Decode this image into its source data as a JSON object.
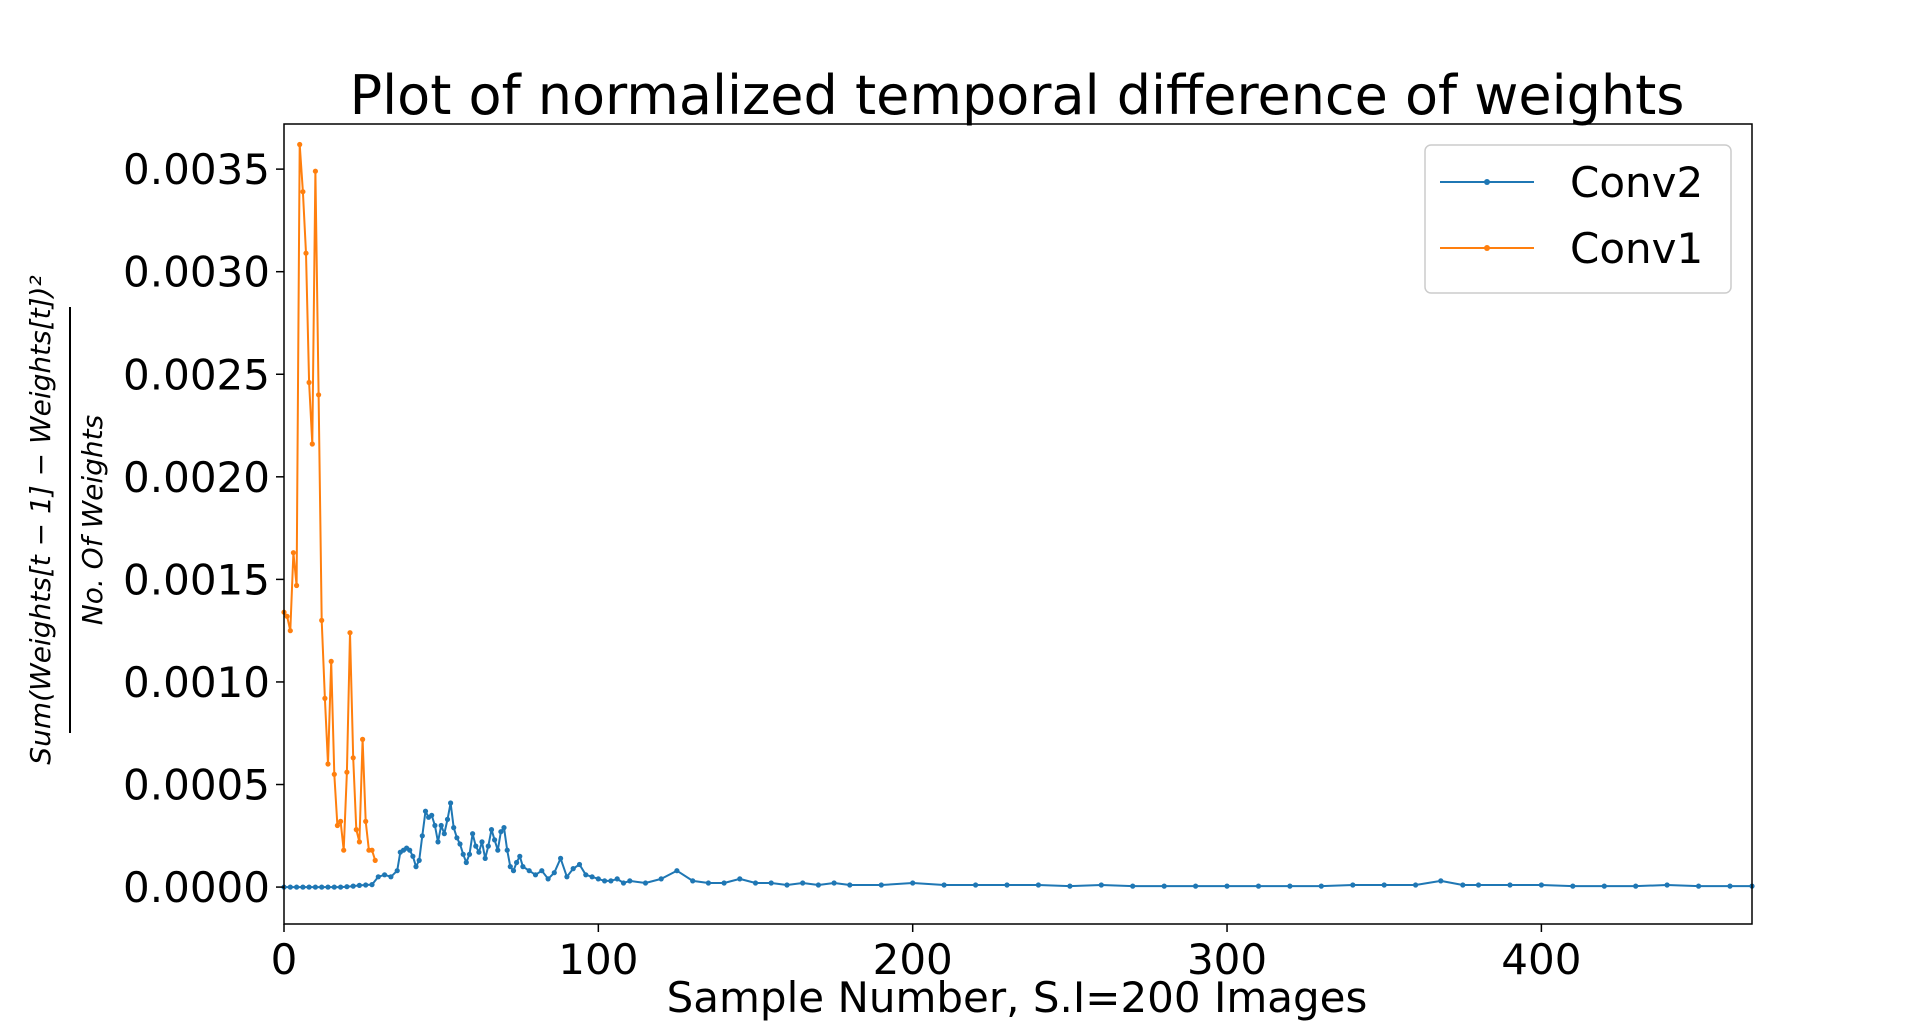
{
  "chart_data": {
    "type": "line",
    "title": "Plot of normalized temporal difference of weights",
    "xlabel": "Sample Number, S.I=200 Images",
    "ylabel_numerator": "Sum(Weights[t − 1] − Weights[t])²",
    "ylabel_denominator": "No. Of Weights",
    "xlim": [
      0,
      467
    ],
    "ylim": [
      -0.00018,
      0.00372
    ],
    "xticks": [
      0,
      100,
      200,
      300,
      400
    ],
    "xtick_labels": [
      "0",
      "100",
      "200",
      "300",
      "400"
    ],
    "yticks": [
      0.0,
      0.0005,
      0.001,
      0.0015,
      0.002,
      0.0025,
      0.003,
      0.0035
    ],
    "ytick_labels": [
      "0.0000",
      "0.0005",
      "0.0010",
      "0.0015",
      "0.0020",
      "0.0025",
      "0.0030",
      "0.0035"
    ],
    "grid": false,
    "legend_position": "top-right",
    "series": [
      {
        "name": "Conv2",
        "color": "#1f77b4",
        "marker": "dot",
        "points": [
          [
            0,
            0.0
          ],
          [
            2,
            0.0
          ],
          [
            4,
            0.0
          ],
          [
            6,
            0.0
          ],
          [
            8,
            0.0
          ],
          [
            10,
            0.0
          ],
          [
            12,
            0.0
          ],
          [
            14,
            0.0
          ],
          [
            16,
            0.0
          ],
          [
            18,
            0.0
          ],
          [
            20,
            2e-06
          ],
          [
            22,
            5e-06
          ],
          [
            24,
            8e-06
          ],
          [
            26,
            1e-05
          ],
          [
            28,
            1.2e-05
          ],
          [
            30,
            5e-05
          ],
          [
            32,
            6e-05
          ],
          [
            34,
            5e-05
          ],
          [
            36,
            8e-05
          ],
          [
            37,
            0.00017
          ],
          [
            38,
            0.00018
          ],
          [
            39,
            0.00019
          ],
          [
            40,
            0.00018
          ],
          [
            41,
            0.00015
          ],
          [
            42,
            0.0001
          ],
          [
            43,
            0.00013
          ],
          [
            44,
            0.00025
          ],
          [
            45,
            0.00037
          ],
          [
            46,
            0.00034
          ],
          [
            47,
            0.00035
          ],
          [
            48,
            0.0003
          ],
          [
            49,
            0.00022
          ],
          [
            50,
            0.0003
          ],
          [
            51,
            0.00026
          ],
          [
            52,
            0.00033
          ],
          [
            53,
            0.00041
          ],
          [
            54,
            0.00029
          ],
          [
            55,
            0.00024
          ],
          [
            56,
            0.00021
          ],
          [
            57,
            0.00016
          ],
          [
            58,
            0.00012
          ],
          [
            59,
            0.00016
          ],
          [
            60,
            0.00026
          ],
          [
            61,
            0.0002
          ],
          [
            62,
            0.00017
          ],
          [
            63,
            0.00022
          ],
          [
            64,
            0.00014
          ],
          [
            65,
            0.0002
          ],
          [
            66,
            0.00028
          ],
          [
            67,
            0.00023
          ],
          [
            68,
            0.00018
          ],
          [
            69,
            0.00027
          ],
          [
            70,
            0.00029
          ],
          [
            71,
            0.00018
          ],
          [
            72,
            0.0001
          ],
          [
            73,
            8e-05
          ],
          [
            74,
            0.00012
          ],
          [
            75,
            0.00015
          ],
          [
            76,
            0.0001
          ],
          [
            78,
            8e-05
          ],
          [
            80,
            6e-05
          ],
          [
            82,
            8e-05
          ],
          [
            84,
            4e-05
          ],
          [
            86,
            7e-05
          ],
          [
            88,
            0.00014
          ],
          [
            90,
            5e-05
          ],
          [
            92,
            9e-05
          ],
          [
            94,
            0.00011
          ],
          [
            96,
            6e-05
          ],
          [
            98,
            5e-05
          ],
          [
            100,
            4e-05
          ],
          [
            102,
            3e-05
          ],
          [
            104,
            3e-05
          ],
          [
            106,
            4e-05
          ],
          [
            108,
            2e-05
          ],
          [
            110,
            3e-05
          ],
          [
            115,
            2e-05
          ],
          [
            120,
            4e-05
          ],
          [
            125,
            8e-05
          ],
          [
            130,
            3e-05
          ],
          [
            135,
            2e-05
          ],
          [
            140,
            2e-05
          ],
          [
            145,
            4e-05
          ],
          [
            150,
            2e-05
          ],
          [
            155,
            2e-05
          ],
          [
            160,
            1e-05
          ],
          [
            165,
            2e-05
          ],
          [
            170,
            1e-05
          ],
          [
            175,
            2e-05
          ],
          [
            180,
            1e-05
          ],
          [
            190,
            1e-05
          ],
          [
            200,
            2e-05
          ],
          [
            210,
            1e-05
          ],
          [
            220,
            1e-05
          ],
          [
            230,
            1e-05
          ],
          [
            240,
            1e-05
          ],
          [
            250,
            5e-06
          ],
          [
            260,
            1e-05
          ],
          [
            270,
            5e-06
          ],
          [
            280,
            5e-06
          ],
          [
            290,
            5e-06
          ],
          [
            300,
            5e-06
          ],
          [
            310,
            5e-06
          ],
          [
            320,
            5e-06
          ],
          [
            330,
            5e-06
          ],
          [
            340,
            1e-05
          ],
          [
            350,
            1e-05
          ],
          [
            360,
            1e-05
          ],
          [
            368,
            3e-05
          ],
          [
            375,
            1e-05
          ],
          [
            380,
            1e-05
          ],
          [
            390,
            1e-05
          ],
          [
            400,
            1e-05
          ],
          [
            410,
            5e-06
          ],
          [
            420,
            5e-06
          ],
          [
            430,
            5e-06
          ],
          [
            440,
            1e-05
          ],
          [
            450,
            5e-06
          ],
          [
            460,
            5e-06
          ],
          [
            467,
            5e-06
          ]
        ]
      },
      {
        "name": "Conv1",
        "color": "#ff7f0e",
        "marker": "dot",
        "points": [
          [
            0,
            0.00134
          ],
          [
            1,
            0.00132
          ],
          [
            2,
            0.00125
          ],
          [
            3,
            0.00163
          ],
          [
            4,
            0.00147
          ],
          [
            5,
            0.00362
          ],
          [
            6,
            0.00339
          ],
          [
            7,
            0.00309
          ],
          [
            8,
            0.00246
          ],
          [
            9,
            0.00216
          ],
          [
            10,
            0.00349
          ],
          [
            11,
            0.0024
          ],
          [
            12,
            0.0013
          ],
          [
            13,
            0.00092
          ],
          [
            14,
            0.0006
          ],
          [
            15,
            0.0011
          ],
          [
            16,
            0.00055
          ],
          [
            17,
            0.0003
          ],
          [
            18,
            0.00032
          ],
          [
            19,
            0.00018
          ],
          [
            20,
            0.00056
          ],
          [
            21,
            0.00124
          ],
          [
            22,
            0.00063
          ],
          [
            23,
            0.00028
          ],
          [
            24,
            0.00022
          ],
          [
            25,
            0.00072
          ],
          [
            26,
            0.00032
          ],
          [
            27,
            0.00018
          ],
          [
            28,
            0.00018
          ],
          [
            29,
            0.00013
          ]
        ]
      }
    ]
  }
}
